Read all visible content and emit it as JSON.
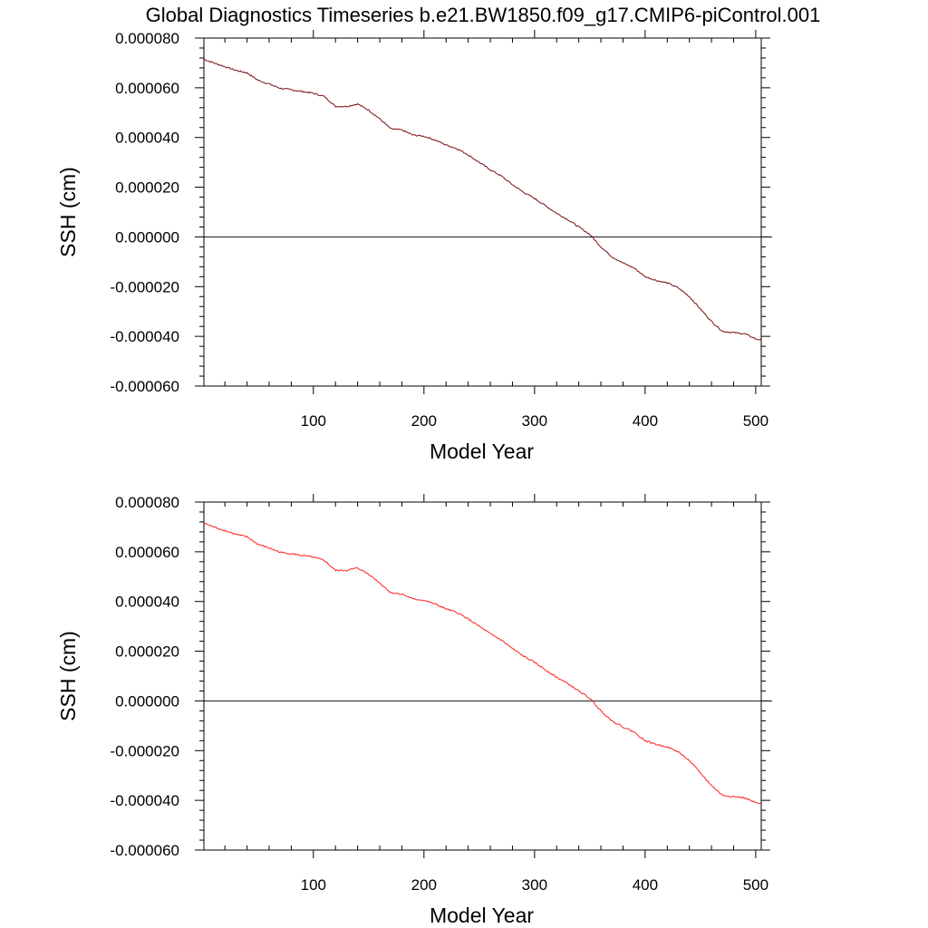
{
  "title": "Global Diagnostics Timeseries b.e21.BW1850.f09_g17.CMIP6-piControl.001",
  "chart_data": [
    {
      "type": "line",
      "xlabel": "Model Year",
      "ylabel": "SSH (cm)",
      "xlim": [
        1,
        505
      ],
      "ylim": [
        -6e-05,
        8e-05
      ],
      "xticks": [
        100,
        200,
        300,
        400,
        500
      ],
      "xtick_labels": [
        "100",
        "200",
        "300",
        "400",
        "500"
      ],
      "yticks": [
        8e-05,
        6e-05,
        4e-05,
        2e-05,
        0,
        -2e-05,
        -4e-05,
        -6e-05
      ],
      "ytick_labels": [
        "0.000080",
        "0.000060",
        "0.000040",
        "0.000020",
        "0.000000",
        "-0.000020",
        "-0.000040",
        "-0.000060"
      ],
      "reference_line": 0,
      "series": [
        {
          "name": "SSH",
          "color": "#7a1010",
          "x": [
            1,
            10,
            20,
            30,
            40,
            50,
            60,
            70,
            80,
            90,
            100,
            110,
            120,
            130,
            140,
            150,
            160,
            170,
            180,
            190,
            200,
            210,
            220,
            230,
            240,
            250,
            260,
            270,
            280,
            290,
            300,
            310,
            320,
            330,
            340,
            350,
            360,
            370,
            380,
            390,
            400,
            410,
            420,
            430,
            440,
            450,
            460,
            470,
            480,
            490,
            500,
            505
          ],
          "values": [
            7.15e-05,
            7e-05,
            6.85e-05,
            6.7e-05,
            6.6e-05,
            6.3e-05,
            6.15e-05,
            5.98e-05,
            5.92e-05,
            5.85e-05,
            5.78e-05,
            5.65e-05,
            5.25e-05,
            5.25e-05,
            5.35e-05,
            5.1e-05,
            4.75e-05,
            4.35e-05,
            4.3e-05,
            4.1e-05,
            4.05e-05,
            3.9e-05,
            3.7e-05,
            3.55e-05,
            3.3e-05,
            3e-05,
            2.7e-05,
            2.45e-05,
            2.1e-05,
            1.8e-05,
            1.55e-05,
            1.25e-05,
            9.5e-06,
            7e-06,
            4e-06,
            1e-06,
            -4e-06,
            -8e-06,
            -1.05e-05,
            -1.25e-05,
            -1.6e-05,
            -1.75e-05,
            -1.85e-05,
            -2.05e-05,
            -2.4e-05,
            -2.9e-05,
            -3.4e-05,
            -3.8e-05,
            -3.85e-05,
            -3.9e-05,
            -4.1e-05,
            -4.15e-05
          ]
        }
      ]
    },
    {
      "type": "line",
      "xlabel": "Model Year",
      "ylabel": "SSH (cm)",
      "xlim": [
        1,
        505
      ],
      "ylim": [
        -6e-05,
        8e-05
      ],
      "xticks": [
        100,
        200,
        300,
        400,
        500
      ],
      "xtick_labels": [
        "100",
        "200",
        "300",
        "400",
        "500"
      ],
      "yticks": [
        8e-05,
        6e-05,
        4e-05,
        2e-05,
        0,
        -2e-05,
        -4e-05,
        -6e-05
      ],
      "ytick_labels": [
        "0.000080",
        "0.000060",
        "0.000040",
        "0.000020",
        "0.000000",
        "-0.000020",
        "-0.000040",
        "-0.000060"
      ],
      "reference_line": 0,
      "series": [
        {
          "name": "SSH",
          "color": "#ff2020",
          "x": [
            1,
            10,
            20,
            30,
            40,
            50,
            60,
            70,
            80,
            90,
            100,
            110,
            120,
            130,
            140,
            150,
            160,
            170,
            180,
            190,
            200,
            210,
            220,
            230,
            240,
            250,
            260,
            270,
            280,
            290,
            300,
            310,
            320,
            330,
            340,
            350,
            360,
            370,
            380,
            390,
            400,
            410,
            420,
            430,
            440,
            450,
            460,
            470,
            480,
            490,
            500,
            505
          ],
          "values": [
            7.15e-05,
            7e-05,
            6.85e-05,
            6.7e-05,
            6.6e-05,
            6.3e-05,
            6.15e-05,
            5.98e-05,
            5.92e-05,
            5.85e-05,
            5.78e-05,
            5.65e-05,
            5.25e-05,
            5.25e-05,
            5.35e-05,
            5.1e-05,
            4.75e-05,
            4.35e-05,
            4.3e-05,
            4.1e-05,
            4.05e-05,
            3.9e-05,
            3.7e-05,
            3.55e-05,
            3.3e-05,
            3e-05,
            2.7e-05,
            2.45e-05,
            2.1e-05,
            1.8e-05,
            1.55e-05,
            1.25e-05,
            9.5e-06,
            7e-06,
            4e-06,
            1e-06,
            -4e-06,
            -8e-06,
            -1.05e-05,
            -1.25e-05,
            -1.6e-05,
            -1.75e-05,
            -1.85e-05,
            -2.05e-05,
            -2.4e-05,
            -2.9e-05,
            -3.4e-05,
            -3.8e-05,
            -3.85e-05,
            -3.9e-05,
            -4.1e-05,
            -4.15e-05
          ]
        }
      ]
    }
  ]
}
